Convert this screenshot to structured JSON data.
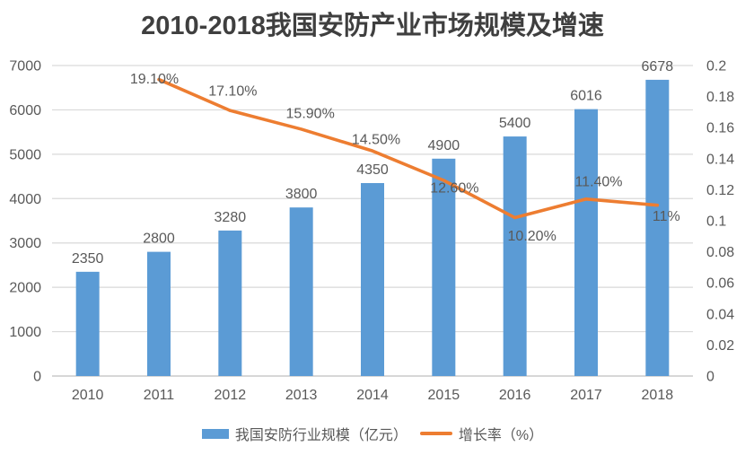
{
  "chart_data": {
    "type": "combo-bar-line",
    "title": "2010-2018我国安防产业市场规模及增速",
    "categories": [
      "2010",
      "2011",
      "2012",
      "2013",
      "2014",
      "2015",
      "2016",
      "2017",
      "2018"
    ],
    "series": [
      {
        "name": "我国安防行业规模（亿元）",
        "type": "bar",
        "axis": "left",
        "color": "#5b9bd5",
        "values": [
          2350,
          2800,
          3280,
          3800,
          4350,
          4900,
          5400,
          6016,
          6678
        ],
        "labels": [
          "2350",
          "2800",
          "3280",
          "3800",
          "4350",
          "4900",
          "5400",
          "6016",
          "6678"
        ]
      },
      {
        "name": "增长率（%）",
        "type": "line",
        "axis": "right",
        "color": "#ed7d31",
        "values": [
          null,
          0.191,
          0.171,
          0.159,
          0.145,
          0.126,
          0.102,
          0.114,
          0.11
        ],
        "labels": [
          null,
          "19.10%",
          "17.10%",
          "15.90%",
          "14.50%",
          "12.60%",
          "10.20%",
          "11.40%",
          "11%"
        ],
        "label_offsets": [
          null,
          [
            -5,
            -1
          ],
          [
            3,
            -22
          ],
          [
            10,
            -18
          ],
          [
            4,
            -13
          ],
          [
            12,
            8
          ],
          [
            19,
            20
          ],
          [
            14,
            -20
          ],
          [
            10,
            12
          ]
        ]
      }
    ],
    "left_axis": {
      "min": 0,
      "max": 7000,
      "ticks": [
        "0",
        "1000",
        "2000",
        "3000",
        "4000",
        "5000",
        "6000",
        "7000"
      ]
    },
    "right_axis": {
      "min": 0,
      "max": 0.2,
      "ticks": [
        "0",
        "0.02",
        "0.04",
        "0.06",
        "0.08",
        "0.1",
        "0.12",
        "0.14",
        "0.16",
        "0.18",
        "0.2"
      ]
    },
    "grid": true,
    "legend_position": "bottom",
    "colors": {
      "gridline": "#d9d9d9",
      "axis_line": "#bfbfbf",
      "label_text": "#595959",
      "title_text": "#3f3f3f"
    }
  }
}
